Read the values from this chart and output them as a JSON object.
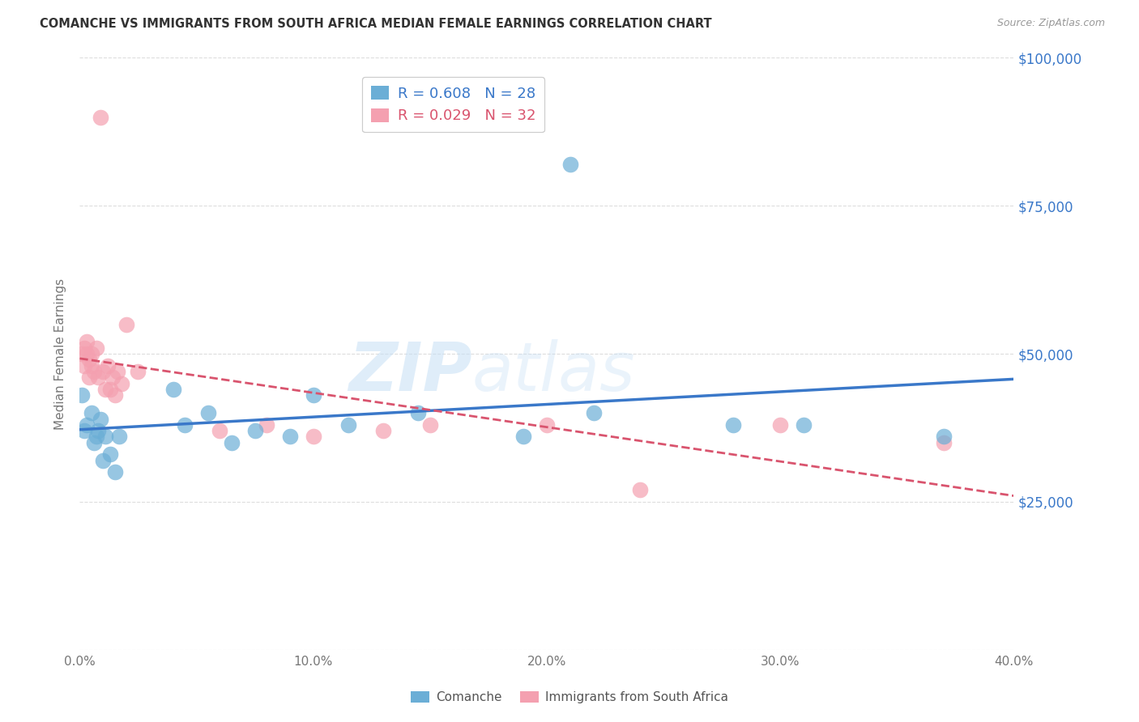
{
  "title": "COMANCHE VS IMMIGRANTS FROM SOUTH AFRICA MEDIAN FEMALE EARNINGS CORRELATION CHART",
  "source": "Source: ZipAtlas.com",
  "ylabel": "Median Female Earnings",
  "x_min": 0.0,
  "x_max": 0.4,
  "y_min": 0,
  "y_max": 100000,
  "yticks": [
    0,
    25000,
    50000,
    75000,
    100000
  ],
  "ytick_labels": [
    "",
    "$25,000",
    "$50,000",
    "$75,000",
    "$100,000"
  ],
  "xticks": [
    0.0,
    0.1,
    0.2,
    0.3,
    0.4
  ],
  "xtick_labels": [
    "0.0%",
    "10.0%",
    "20.0%",
    "30.0%",
    "40.0%"
  ],
  "R_comanche": 0.608,
  "N_comanche": 28,
  "R_immigrant": 0.029,
  "N_immigrant": 32,
  "blue_color": "#6baed6",
  "pink_color": "#f4a0b0",
  "trend_blue": "#3a78c9",
  "trend_pink": "#d9546e",
  "background_color": "#ffffff",
  "watermark_text": "ZIPatlas",
  "comanche_x": [
    0.001,
    0.002,
    0.003,
    0.005,
    0.006,
    0.007,
    0.008,
    0.009,
    0.01,
    0.011,
    0.013,
    0.015,
    0.017,
    0.04,
    0.045,
    0.055,
    0.065,
    0.075,
    0.09,
    0.1,
    0.115,
    0.145,
    0.19,
    0.21,
    0.22,
    0.28,
    0.31,
    0.37
  ],
  "comanche_y": [
    43000,
    37000,
    38000,
    40000,
    35000,
    36000,
    37000,
    39000,
    32000,
    36000,
    33000,
    30000,
    36000,
    44000,
    38000,
    40000,
    35000,
    37000,
    36000,
    43000,
    38000,
    40000,
    36000,
    82000,
    40000,
    38000,
    38000,
    36000
  ],
  "immigrant_x": [
    0.001,
    0.002,
    0.002,
    0.003,
    0.003,
    0.004,
    0.004,
    0.005,
    0.005,
    0.006,
    0.007,
    0.008,
    0.009,
    0.01,
    0.011,
    0.012,
    0.013,
    0.014,
    0.015,
    0.016,
    0.018,
    0.02,
    0.025,
    0.06,
    0.08,
    0.1,
    0.13,
    0.15,
    0.2,
    0.24,
    0.3,
    0.37
  ],
  "immigrant_y": [
    50000,
    51000,
    48000,
    50000,
    52000,
    49000,
    46000,
    50000,
    48000,
    47000,
    51000,
    46000,
    90000,
    47000,
    44000,
    48000,
    44000,
    46000,
    43000,
    47000,
    45000,
    55000,
    47000,
    37000,
    38000,
    36000,
    37000,
    38000,
    38000,
    27000,
    38000,
    35000
  ]
}
